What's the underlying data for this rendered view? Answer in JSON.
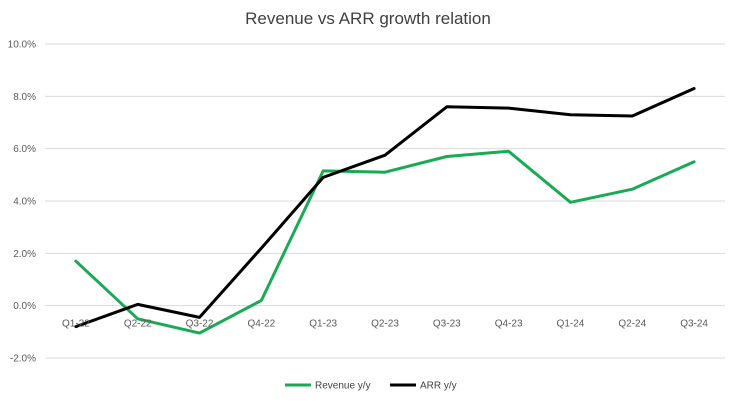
{
  "chart_data": {
    "type": "line",
    "title": "Revenue vs ARR growth relation",
    "xlabel": "",
    "ylabel": "",
    "categories": [
      "Q1-22",
      "Q2-22",
      "Q3-22",
      "Q4-22",
      "Q1-23",
      "Q2-23",
      "Q3-23",
      "Q4-23",
      "Q1-24",
      "Q2-24",
      "Q3-24"
    ],
    "series": [
      {
        "name": "Revenue y/y",
        "color": "#1aaa55",
        "values": [
          1.7,
          -0.5,
          -1.05,
          0.2,
          5.15,
          5.1,
          5.7,
          5.9,
          3.95,
          4.45,
          5.5
        ]
      },
      {
        "name": "ARR y/y",
        "color": "#000000",
        "values": [
          -0.8,
          0.05,
          -0.45,
          2.2,
          4.9,
          5.75,
          7.6,
          7.55,
          7.3,
          7.25,
          8.3
        ]
      }
    ],
    "ylim": [
      -2,
      10
    ],
    "yticks": [
      -2,
      0,
      2,
      4,
      6,
      8,
      10
    ],
    "ytick_labels": [
      "-2.0%",
      "0.0%",
      "2.0%",
      "4.0%",
      "6.0%",
      "8.0%",
      "10.0%"
    ],
    "grid": true,
    "legend_position": "bottom"
  }
}
